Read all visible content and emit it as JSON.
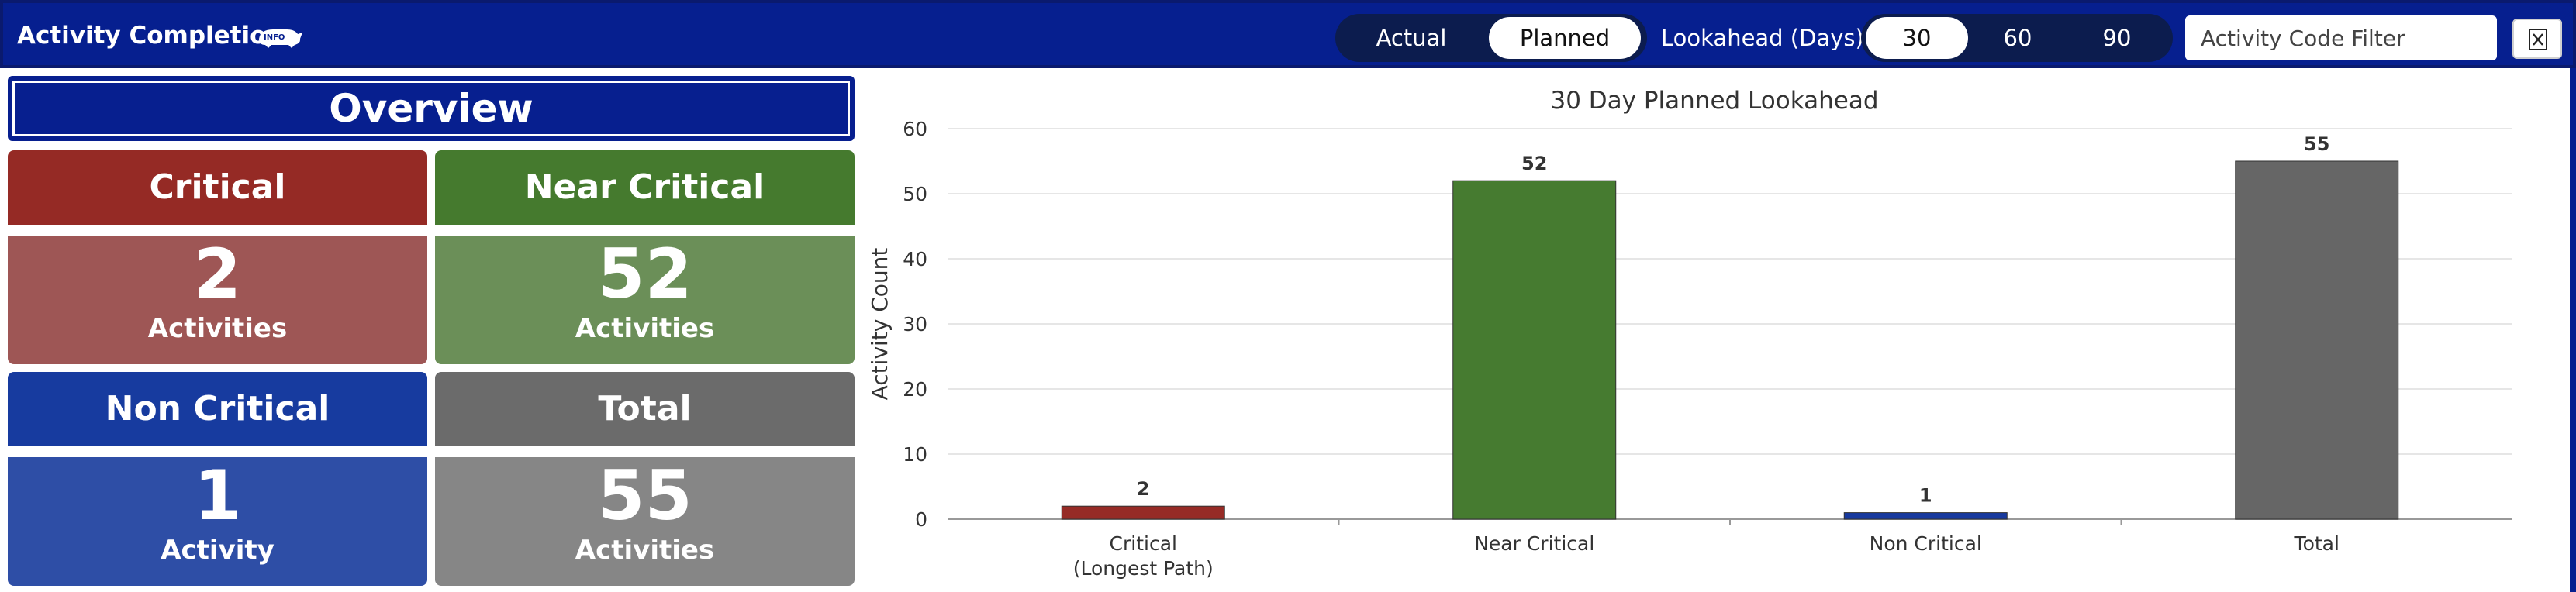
{
  "header": {
    "title": "Activity Completion",
    "info_icon": "info-rhino-icon",
    "mode_toggle": {
      "options": [
        "Actual",
        "Planned"
      ],
      "selected": "Planned"
    },
    "lookahead_label": "Lookahead (Days):",
    "lookahead_options": [
      "30",
      "60",
      "90"
    ],
    "lookahead_selected": "30",
    "filter_placeholder": "Activity Code Filter",
    "export_icon": "excel-export-icon"
  },
  "overview": {
    "title": "Overview",
    "cards": [
      {
        "title": "Critical",
        "value": "2",
        "unit": "Activities",
        "color": "#952a25"
      },
      {
        "title": "Near Critical",
        "value": "52",
        "unit": "Activities",
        "color": "#457a2e"
      },
      {
        "title": "Non Critical",
        "value": "1",
        "unit": "Activity",
        "color": "#173b9f"
      },
      {
        "title": "Total",
        "value": "55",
        "unit": "Activities",
        "color": "#6b6b6b"
      }
    ]
  },
  "chart_data": {
    "type": "bar",
    "title": "30 Day Planned Lookahead",
    "ylabel": "Activity Count",
    "xlabel": "",
    "ylim": [
      0,
      60
    ],
    "yticks": [
      0,
      10,
      20,
      30,
      40,
      50,
      60
    ],
    "grid": true,
    "categories": [
      [
        "Critical",
        "(Longest Path)"
      ],
      [
        "Near Critical"
      ],
      [
        "Non Critical"
      ],
      [
        "Total"
      ]
    ],
    "values": [
      2,
      52,
      1,
      55
    ],
    "colors": [
      "#962b26",
      "#467b30",
      "#17399e",
      "#666666"
    ]
  }
}
